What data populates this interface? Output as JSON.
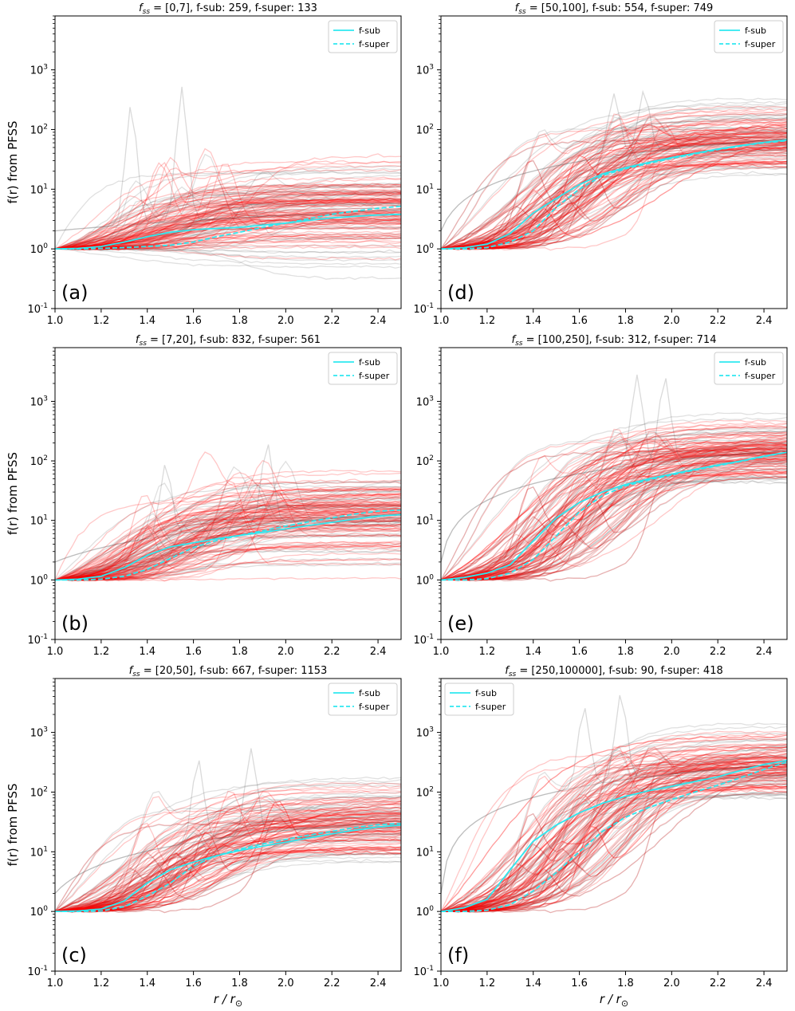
{
  "figure": {
    "ylabel": "f(r) from PFSS",
    "xlabel": "r / r",
    "xlabel_sub": "⊙"
  },
  "colors": {
    "f_sub_line": "#2ee8f0",
    "f_super_line": "#2ee8f0",
    "sub_background_lines": "#555555",
    "super_background_lines": "#ff0000",
    "frame": "#000000"
  },
  "chart_data": [
    {
      "id": "a",
      "panel_label": "(a)",
      "type": "line",
      "title_prefix": "f",
      "title_sub": "ss",
      "title_rest": " = [0,7], f-sub: 259, f-super: 133",
      "xlim": [
        1.0,
        2.5
      ],
      "ylim": [
        0.1,
        8000
      ],
      "yscale": "log",
      "xticks": [
        "1.0",
        "1.2",
        "1.4",
        "1.6",
        "1.8",
        "2.0",
        "2.2",
        "2.4"
      ],
      "yticks": [
        {
          "base": "10",
          "exp": "-1"
        },
        {
          "base": "10",
          "exp": "0"
        },
        {
          "base": "10",
          "exp": "1"
        },
        {
          "base": "10",
          "exp": "2"
        },
        {
          "base": "10",
          "exp": "3"
        }
      ],
      "legend": {
        "position": "top-right",
        "entries": [
          {
            "label": "f-sub",
            "style": "solid"
          },
          {
            "label": "f-super",
            "style": "dashed"
          }
        ]
      },
      "show_ylabel": true,
      "show_xlabel": false,
      "ensemble": {
        "target": 4.5,
        "spread": 0.45,
        "onset": 1.45,
        "peaks": [
          1.33,
          1.55
        ],
        "peak_values": [
          260,
          520
        ]
      },
      "series": [
        {
          "name": "f-sub",
          "style": "solid",
          "x": [
            1.0,
            1.1,
            1.2,
            1.3,
            1.4,
            1.5,
            1.6,
            1.7,
            1.8,
            1.9,
            2.0,
            2.1,
            2.2,
            2.3,
            2.4,
            2.5
          ],
          "y": [
            1.0,
            1.02,
            1.1,
            1.3,
            1.6,
            1.9,
            2.1,
            2.2,
            2.3,
            2.5,
            2.7,
            3.0,
            3.3,
            3.5,
            3.7,
            3.8
          ]
        },
        {
          "name": "f-super",
          "style": "dashed",
          "x": [
            1.0,
            1.1,
            1.2,
            1.3,
            1.4,
            1.5,
            1.6,
            1.7,
            1.8,
            1.9,
            2.0,
            2.1,
            2.2,
            2.3,
            2.4,
            2.5
          ],
          "y": [
            1.0,
            1.0,
            1.02,
            1.05,
            1.1,
            1.15,
            1.3,
            1.6,
            1.9,
            2.3,
            2.7,
            3.2,
            3.8,
            4.3,
            4.8,
            5.2
          ]
        }
      ]
    },
    {
      "id": "b",
      "panel_label": "(b)",
      "type": "line",
      "title_prefix": "f",
      "title_sub": "ss",
      "title_rest": " = [7,20], f-sub: 832, f-super: 561",
      "xlim": [
        1.0,
        2.5
      ],
      "ylim": [
        0.1,
        8000
      ],
      "yscale": "log",
      "xticks": [
        "1.0",
        "1.2",
        "1.4",
        "1.6",
        "1.8",
        "2.0",
        "2.2",
        "2.4"
      ],
      "yticks": [
        {
          "base": "10",
          "exp": "-1"
        },
        {
          "base": "10",
          "exp": "0"
        },
        {
          "base": "10",
          "exp": "1"
        },
        {
          "base": "10",
          "exp": "2"
        },
        {
          "base": "10",
          "exp": "3"
        }
      ],
      "legend": {
        "position": "top-right",
        "entries": [
          {
            "label": "f-sub",
            "style": "solid"
          },
          {
            "label": "f-super",
            "style": "dashed"
          }
        ]
      },
      "show_ylabel": true,
      "show_xlabel": false,
      "ensemble": {
        "target": 13,
        "spread": 0.4,
        "onset": 1.45,
        "peaks": [
          1.48,
          1.92
        ],
        "peak_values": [
          90,
          200
        ]
      },
      "series": [
        {
          "name": "f-sub",
          "style": "solid",
          "x": [
            1.0,
            1.1,
            1.2,
            1.3,
            1.4,
            1.5,
            1.6,
            1.7,
            1.8,
            1.9,
            2.0,
            2.1,
            2.2,
            2.3,
            2.4,
            2.5
          ],
          "y": [
            1.0,
            1.03,
            1.15,
            1.6,
            2.6,
            3.6,
            4.2,
            4.9,
            5.6,
            6.3,
            7.2,
            8.2,
            9.3,
            10.5,
            11.8,
            12.5
          ]
        },
        {
          "name": "f-super",
          "style": "dashed",
          "x": [
            1.0,
            1.1,
            1.2,
            1.3,
            1.4,
            1.5,
            1.6,
            1.7,
            1.8,
            1.9,
            2.0,
            2.1,
            2.2,
            2.3,
            2.4,
            2.5
          ],
          "y": [
            1.0,
            1.0,
            1.03,
            1.15,
            1.5,
            2.3,
            3.5,
            4.6,
            5.6,
            6.7,
            8.0,
            9.5,
            11.0,
            12.8,
            14.3,
            15.0
          ]
        }
      ]
    },
    {
      "id": "c",
      "panel_label": "(c)",
      "type": "line",
      "title_prefix": "f",
      "title_sub": "ss",
      "title_rest": " = [20,50], f-sub: 667, f-super: 1153",
      "xlim": [
        1.0,
        2.5
      ],
      "ylim": [
        0.1,
        8000
      ],
      "yscale": "log",
      "xticks": [
        "1.0",
        "1.2",
        "1.4",
        "1.6",
        "1.8",
        "2.0",
        "2.2",
        "2.4"
      ],
      "yticks": [
        {
          "base": "10",
          "exp": "-1"
        },
        {
          "base": "10",
          "exp": "0"
        },
        {
          "base": "10",
          "exp": "1"
        },
        {
          "base": "10",
          "exp": "2"
        },
        {
          "base": "10",
          "exp": "3"
        }
      ],
      "legend": {
        "position": "top-right",
        "entries": [
          {
            "label": "f-sub",
            "style": "solid"
          },
          {
            "label": "f-super",
            "style": "dashed"
          }
        ]
      },
      "show_ylabel": true,
      "show_xlabel": true,
      "ensemble": {
        "target": 33,
        "spread": 0.35,
        "onset": 1.5,
        "peaks": [
          1.62,
          1.85
        ],
        "peak_values": [
          360,
          540
        ]
      },
      "series": [
        {
          "name": "f-sub",
          "style": "solid",
          "x": [
            1.0,
            1.1,
            1.2,
            1.3,
            1.4,
            1.5,
            1.6,
            1.7,
            1.8,
            1.9,
            2.0,
            2.1,
            2.2,
            2.3,
            2.4,
            2.5
          ],
          "y": [
            1.0,
            1.02,
            1.1,
            1.5,
            3.0,
            5.0,
            6.7,
            8.6,
            10.5,
            12.4,
            14.5,
            17.0,
            20.0,
            23.0,
            26.0,
            28.0
          ]
        },
        {
          "name": "f-super",
          "style": "dashed",
          "x": [
            1.0,
            1.1,
            1.2,
            1.3,
            1.4,
            1.5,
            1.6,
            1.7,
            1.8,
            1.9,
            2.0,
            2.1,
            2.2,
            2.3,
            2.4,
            2.5
          ],
          "y": [
            1.0,
            1.0,
            1.02,
            1.2,
            1.8,
            3.0,
            5.8,
            8.6,
            11.0,
            13.5,
            16.0,
            19.0,
            22.0,
            25.5,
            28.5,
            30.0
          ]
        }
      ]
    },
    {
      "id": "d",
      "panel_label": "(d)",
      "type": "line",
      "title_prefix": "f",
      "title_sub": "ss",
      "title_rest": " = [50,100], f-sub: 554, f-super: 749",
      "xlim": [
        1.0,
        2.5
      ],
      "ylim": [
        0.1,
        8000
      ],
      "yscale": "log",
      "xticks": [
        "1.0",
        "1.2",
        "1.4",
        "1.6",
        "1.8",
        "2.0",
        "2.2",
        "2.4"
      ],
      "yticks": [
        {
          "base": "10",
          "exp": "-1"
        },
        {
          "base": "10",
          "exp": "0"
        },
        {
          "base": "10",
          "exp": "1"
        },
        {
          "base": "10",
          "exp": "2"
        },
        {
          "base": "10",
          "exp": "3"
        }
      ],
      "legend": {
        "position": "top-right",
        "entries": [
          {
            "label": "f-sub",
            "style": "solid"
          },
          {
            "label": "f-super",
            "style": "dashed"
          }
        ]
      },
      "show_ylabel": false,
      "show_xlabel": false,
      "ensemble": {
        "target": 70,
        "spread": 0.3,
        "onset": 1.55,
        "peaks": [
          1.75,
          1.88
        ],
        "peak_values": [
          400,
          450
        ]
      },
      "series": [
        {
          "name": "f-sub",
          "style": "solid",
          "x": [
            1.0,
            1.1,
            1.2,
            1.3,
            1.4,
            1.5,
            1.6,
            1.7,
            1.8,
            1.9,
            2.0,
            2.1,
            2.2,
            2.3,
            2.4,
            2.5
          ],
          "y": [
            1.0,
            1.05,
            1.2,
            1.8,
            4.0,
            7.0,
            12.0,
            18.0,
            23.0,
            28.0,
            34.0,
            40.0,
            47.0,
            54.0,
            61.0,
            67.0
          ]
        },
        {
          "name": "f-super",
          "style": "dashed",
          "x": [
            1.0,
            1.1,
            1.2,
            1.3,
            1.4,
            1.5,
            1.6,
            1.7,
            1.8,
            1.9,
            2.0,
            2.1,
            2.2,
            2.3,
            2.4,
            2.5
          ],
          "y": [
            1.0,
            1.0,
            1.05,
            1.3,
            2.0,
            5.0,
            10.0,
            17.0,
            22.0,
            27.0,
            33.0,
            39.0,
            46.0,
            53.0,
            60.0,
            65.0
          ]
        }
      ]
    },
    {
      "id": "e",
      "panel_label": "(e)",
      "type": "line",
      "title_prefix": "f",
      "title_sub": "ss",
      "title_rest": " = [100,250], f-sub: 312, f-super: 714",
      "xlim": [
        1.0,
        2.5
      ],
      "ylim": [
        0.1,
        8000
      ],
      "yscale": "log",
      "xticks": [
        "1.0",
        "1.2",
        "1.4",
        "1.6",
        "1.8",
        "2.0",
        "2.2",
        "2.4"
      ],
      "yticks": [
        {
          "base": "10",
          "exp": "-1"
        },
        {
          "base": "10",
          "exp": "0"
        },
        {
          "base": "10",
          "exp": "1"
        },
        {
          "base": "10",
          "exp": "2"
        },
        {
          "base": "10",
          "exp": "3"
        }
      ],
      "legend": {
        "position": "top-right",
        "entries": [
          {
            "label": "f-sub",
            "style": "solid"
          },
          {
            "label": "f-super",
            "style": "dashed"
          }
        ]
      },
      "show_ylabel": false,
      "show_xlabel": false,
      "ensemble": {
        "target": 150,
        "spread": 0.28,
        "onset": 1.55,
        "peaks": [
          1.85,
          1.97
        ],
        "peak_values": [
          2800,
          2600
        ]
      },
      "series": [
        {
          "name": "f-sub",
          "style": "solid",
          "x": [
            1.0,
            1.1,
            1.2,
            1.3,
            1.4,
            1.5,
            1.6,
            1.7,
            1.8,
            1.9,
            2.0,
            2.1,
            2.2,
            2.3,
            2.4,
            2.5
          ],
          "y": [
            1.0,
            1.1,
            1.3,
            1.8,
            4.5,
            11.0,
            20.0,
            30.0,
            40.0,
            50.0,
            60.0,
            72.0,
            85.0,
            100.0,
            120.0,
            140.0
          ]
        },
        {
          "name": "f-super",
          "style": "dashed",
          "x": [
            1.0,
            1.1,
            1.2,
            1.3,
            1.4,
            1.5,
            1.6,
            1.7,
            1.8,
            1.9,
            2.0,
            2.1,
            2.2,
            2.3,
            2.4,
            2.5
          ],
          "y": [
            1.0,
            1.0,
            1.05,
            1.3,
            2.2,
            5.5,
            14.0,
            26.0,
            38.0,
            48.0,
            58.0,
            70.0,
            83.0,
            98.0,
            118.0,
            140.0
          ]
        }
      ]
    },
    {
      "id": "f",
      "panel_label": "(f)",
      "type": "line",
      "title_prefix": "f",
      "title_sub": "ss",
      "title_rest": " = [250,100000], f-sub: 90, f-super: 418",
      "xlim": [
        1.0,
        2.5
      ],
      "ylim": [
        0.1,
        8000
      ],
      "yscale": "log",
      "xticks": [
        "1.0",
        "1.2",
        "1.4",
        "1.6",
        "1.8",
        "2.0",
        "2.2",
        "2.4"
      ],
      "yticks": [
        {
          "base": "10",
          "exp": "-1"
        },
        {
          "base": "10",
          "exp": "0"
        },
        {
          "base": "10",
          "exp": "1"
        },
        {
          "base": "10",
          "exp": "2"
        },
        {
          "base": "10",
          "exp": "3"
        }
      ],
      "legend": {
        "position": "top-left",
        "entries": [
          {
            "label": "f-sub",
            "style": "solid"
          },
          {
            "label": "f-super",
            "style": "dashed"
          }
        ]
      },
      "show_ylabel": false,
      "show_xlabel": true,
      "ensemble": {
        "target": 300,
        "spread": 0.3,
        "onset": 1.55,
        "peaks": [
          1.62,
          1.78
        ],
        "peak_values": [
          2700,
          4500
        ]
      },
      "series": [
        {
          "name": "f-sub",
          "style": "solid",
          "x": [
            1.0,
            1.1,
            1.2,
            1.3,
            1.4,
            1.5,
            1.6,
            1.7,
            1.8,
            1.9,
            2.0,
            2.1,
            2.2,
            2.3,
            2.4,
            2.5
          ],
          "y": [
            1.0,
            1.15,
            1.6,
            5.0,
            15.0,
            28.0,
            45.0,
            65.0,
            85.0,
            105.0,
            125.0,
            150.0,
            180.0,
            230.0,
            290.0,
            340.0
          ]
        },
        {
          "name": "f-super",
          "style": "dashed",
          "x": [
            1.0,
            1.1,
            1.2,
            1.3,
            1.4,
            1.5,
            1.6,
            1.7,
            1.8,
            1.9,
            2.0,
            2.1,
            2.2,
            2.3,
            2.4,
            2.5
          ],
          "y": [
            1.0,
            1.0,
            1.05,
            1.3,
            2.2,
            4.5,
            10.0,
            22.0,
            38.0,
            55.0,
            75.0,
            100.0,
            130.0,
            175.0,
            240.0,
            320.0
          ]
        }
      ]
    }
  ]
}
